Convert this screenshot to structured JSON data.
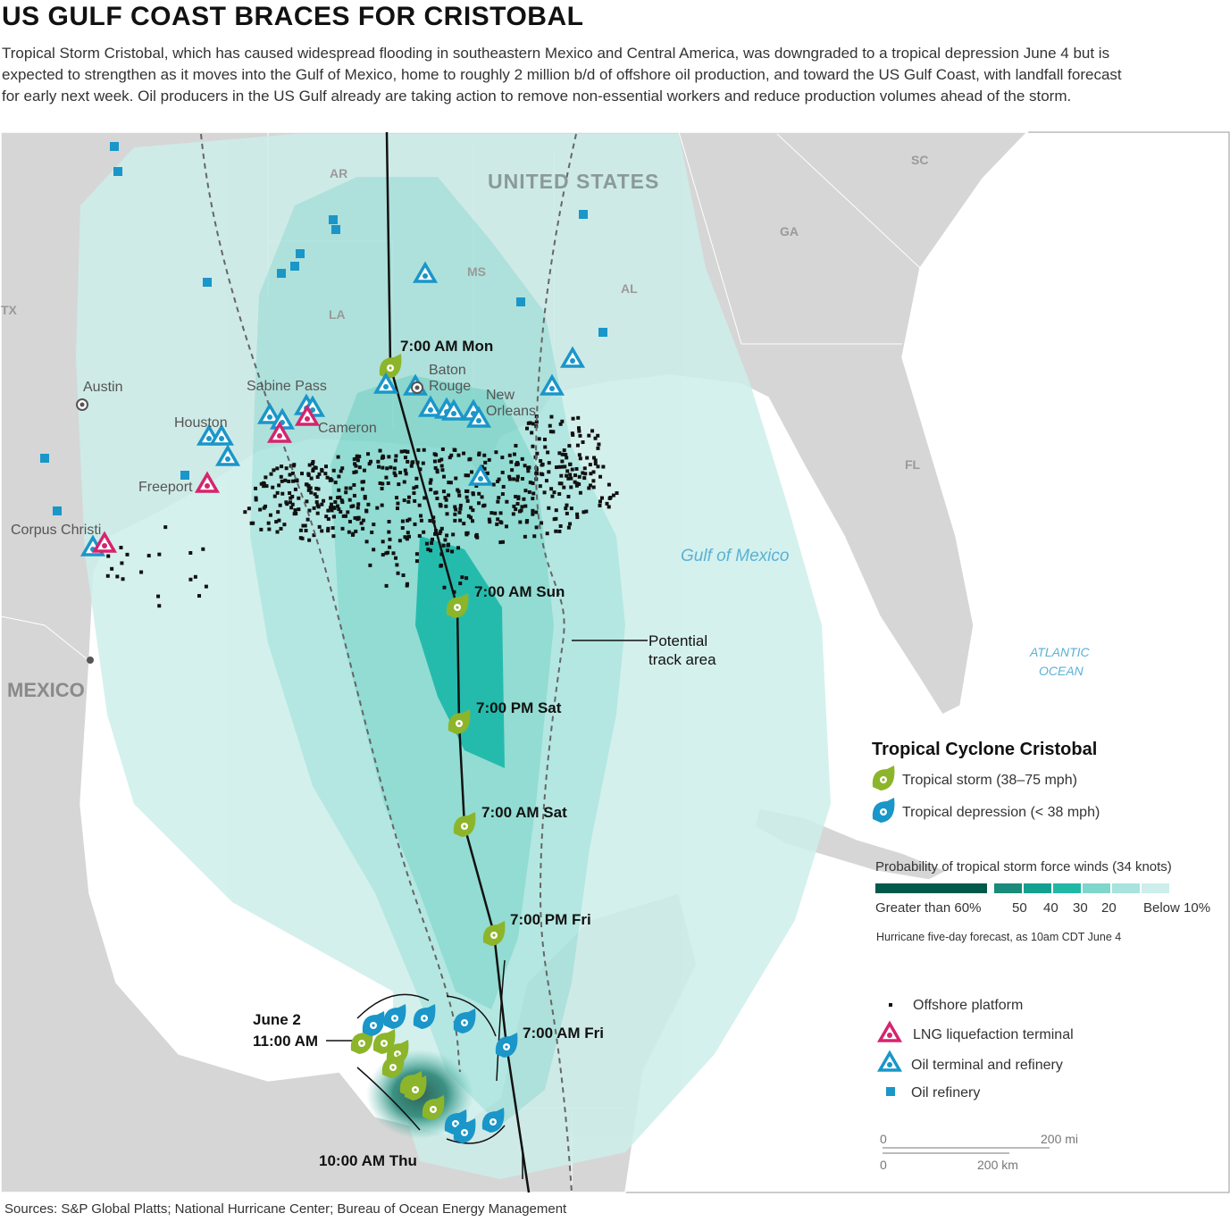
{
  "header": {
    "title": "US GULF COAST BRACES FOR CRISTOBAL",
    "subtitle": "Tropical Storm Cristobal, which has caused widespread flooding in southeastern Mexico and Central America, was downgraded to a tropical depression June 4 but is expected to strengthen as it moves into the Gulf of Mexico, home to roughly 2 million b/d of offshore oil production, and toward the US Gulf Coast, with landfall forecast for early next week. Oil producers in the US Gulf already are taking action to remove non-essential workers and reduce production volumes ahead of the storm."
  },
  "map": {
    "regions": [
      "UNITED STATES",
      "AR",
      "MS",
      "AL",
      "GA",
      "SC",
      "LA",
      "TX",
      "FL",
      "MEXICO"
    ],
    "water": [
      "Gulf of Mexico",
      [
        "ATLANTIC",
        "OCEAN"
      ]
    ],
    "cities": [
      "Austin",
      [
        "Baton",
        "Rouge"
      ],
      [
        "New",
        "Orleans"
      ],
      "Houston",
      "Sabine Pass",
      "Cameron",
      "Freeport",
      "Corpus Christi"
    ]
  },
  "track": {
    "times": [
      "7:00 AM Mon",
      "7:00 AM Sun",
      "7:00 PM Sat",
      "7:00 AM Sat",
      "7:00 PM Fri",
      "7:00 AM Fri",
      [
        "June 2",
        "11:00 AM"
      ],
      "10:00 AM Thu"
    ],
    "annotation": [
      "Potential",
      "track area"
    ]
  },
  "legend": {
    "title": "Tropical Cyclone Cristobal",
    "storm_types": [
      "Tropical storm (38–75 mph)",
      "Tropical depression (< 38 mph)"
    ],
    "probability_title": "Probability of tropical storm force winds (34 knots)",
    "probability_labels": [
      "Greater than 60%",
      "50",
      "40",
      "30",
      "20",
      "Below 10%"
    ],
    "note": "Hurricane five-day forecast, as 10am CDT June 4",
    "facilities": [
      "Offshore platform",
      "LNG liquefaction terminal",
      "Oil terminal and refinery",
      "Oil refinery"
    ],
    "scale": {
      "miles": [
        "0",
        "200 mi"
      ],
      "km": [
        "0",
        "200 km"
      ]
    }
  },
  "footer": {
    "source": "Sources: S&P Global Platts; National Hurricane Center; Bureau of Ocean Energy Management"
  }
}
